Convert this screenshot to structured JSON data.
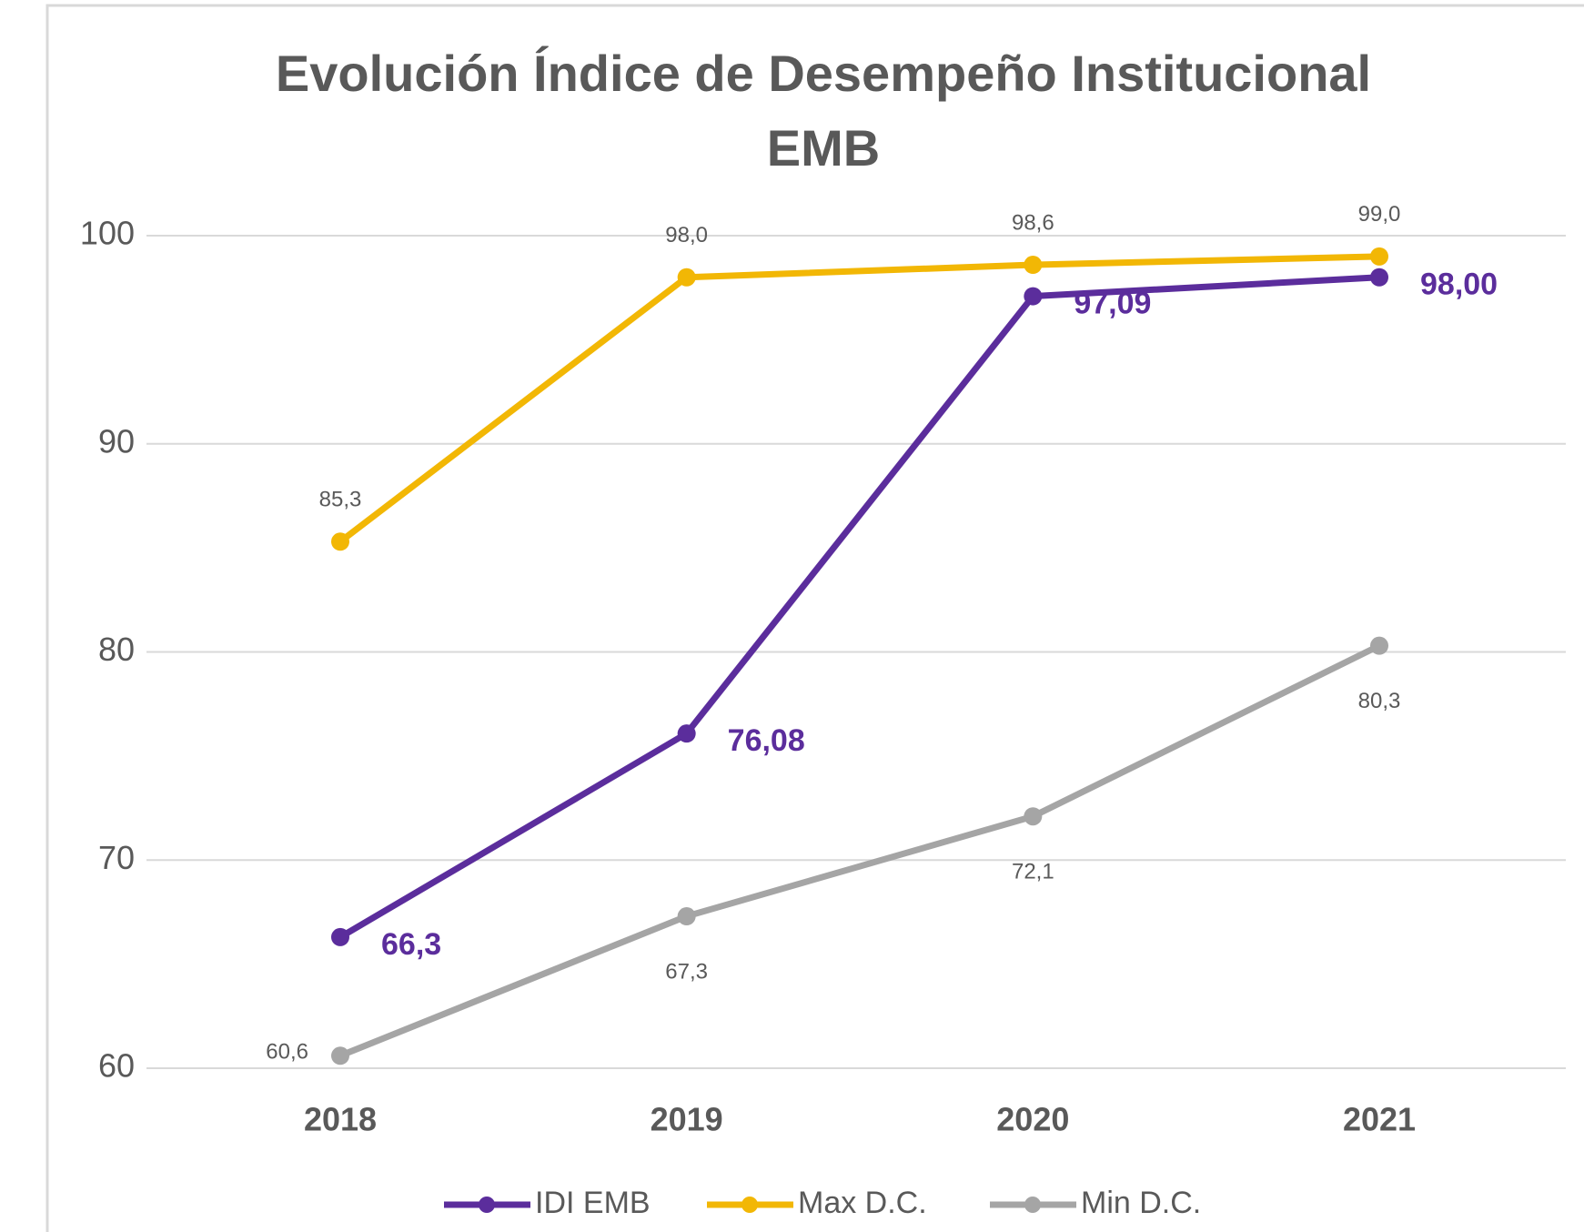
{
  "chart_data": {
    "type": "line",
    "title": "Evolución Índice de Desempeño Institucional EMB",
    "categories": [
      "2018",
      "2019",
      "2020",
      "2021"
    ],
    "series": [
      {
        "name": "IDI EMB",
        "color": "#5b2d9c",
        "values": [
          66.3,
          76.08,
          97.09,
          98.0
        ],
        "value_labels": [
          "66,3",
          "76,08",
          "97,09",
          "98,00"
        ]
      },
      {
        "name": "Max D.C.",
        "color": "#f2b705",
        "values": [
          85.3,
          98.0,
          98.6,
          99.0
        ],
        "value_labels": [
          "85,3",
          "98,0",
          "98,6",
          "99,0"
        ]
      },
      {
        "name": "Min D.C.",
        "color": "#a5a5a5",
        "values": [
          60.6,
          67.3,
          72.1,
          80.3
        ],
        "value_labels": [
          "60,6",
          "67,3",
          "72,1",
          "80,3"
        ]
      }
    ],
    "ylim": [
      60,
      100
    ],
    "yticks": [
      60,
      70,
      80,
      90,
      100
    ],
    "grid": true,
    "legend": "bottom"
  }
}
